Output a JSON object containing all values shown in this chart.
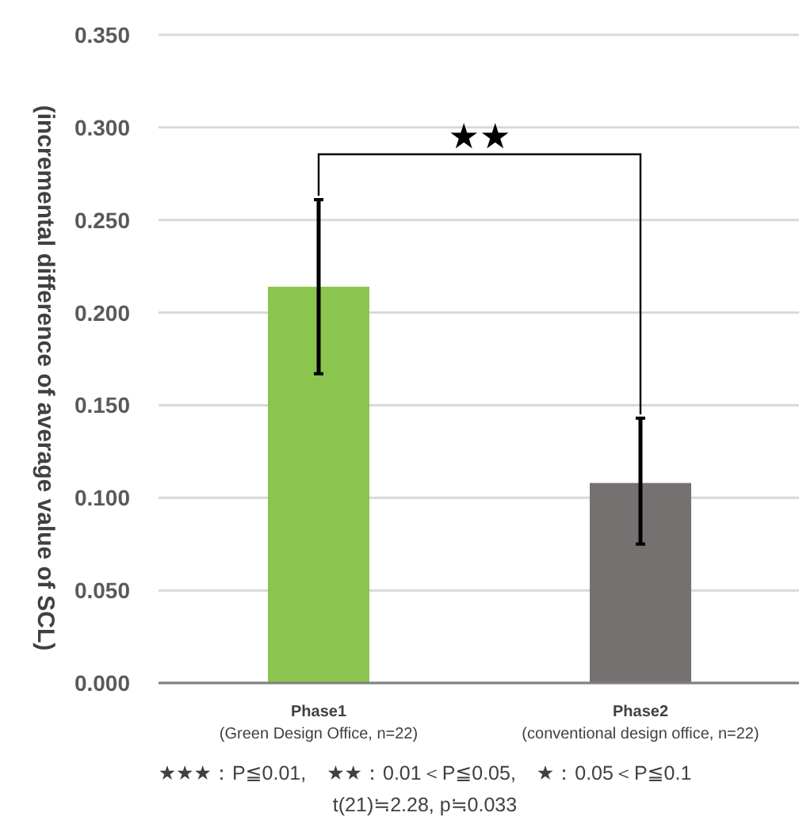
{
  "chart_data": {
    "type": "bar",
    "ylabel": "(incremental difference of average value of SCL)",
    "categories": [
      "Phase1\n(Green Design Office, n=22)",
      "Phase2\n(conventional design office, n=22)"
    ],
    "values": [
      0.214,
      0.108
    ],
    "colors": [
      "#8cc450",
      "#767171"
    ],
    "errors": [
      [
        0.167,
        0.261
      ],
      [
        0.075,
        0.143
      ]
    ],
    "ylim": [
      0,
      0.35
    ],
    "yticks": [
      {
        "value": 0,
        "label": "0.000"
      },
      {
        "value": 0.05,
        "label": "0.050"
      },
      {
        "value": 0.1,
        "label": "0.100"
      },
      {
        "value": 0.15,
        "label": "0.150"
      },
      {
        "value": 0.2,
        "label": "0.200"
      },
      {
        "value": 0.25,
        "label": "0.250"
      },
      {
        "value": 0.3,
        "label": "0.300"
      },
      {
        "value": 0.35,
        "label": "0.350"
      }
    ],
    "grid": "y",
    "annotations": [
      "★★",
      "★★★：P≦0.01,　★★：0.01＜P≦0.05,　★：0.05＜P≦0.1",
      "t(21)≒2.28, p≒0.033"
    ]
  }
}
